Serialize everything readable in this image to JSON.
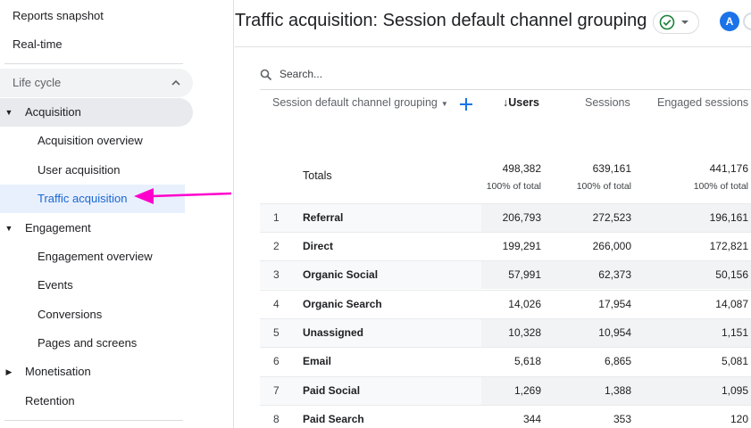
{
  "sidebar": {
    "top_items": [
      "Reports snapshot",
      "Real-time"
    ],
    "section_label": "Life cycle",
    "acquisition": "Acquisition",
    "acquisition_children": [
      "Acquisition overview",
      "User acquisition",
      "Traffic acquisition"
    ],
    "engagement": "Engagement",
    "engagement_children": [
      "Engagement overview",
      "Events",
      "Conversions",
      "Pages and screens"
    ],
    "monetisation": "Monetisation",
    "retention": "Retention",
    "active_item": "Traffic acquisition"
  },
  "header": {
    "title": "Traffic acquisition: Session default channel grouping",
    "avatar_letter": "A",
    "status_icon": "check-circle-icon"
  },
  "table": {
    "search_placeholder": "Search...",
    "columns": {
      "dimension": "Session default channel grouping",
      "users": "Users",
      "sessions": "Sessions",
      "engaged_sessions": "Engaged sessions"
    },
    "totals": {
      "label": "Totals",
      "users": "498,382",
      "sessions": "639,161",
      "engaged_sessions": "441,176",
      "users_pct": "100% of total",
      "sessions_pct": "100% of total",
      "engaged_pct": "100% of total"
    },
    "rows": [
      {
        "idx": "1",
        "name": "Referral",
        "users": "206,793",
        "sessions": "272,523",
        "engaged": "196,161"
      },
      {
        "idx": "2",
        "name": "Direct",
        "users": "199,291",
        "sessions": "266,000",
        "engaged": "172,821"
      },
      {
        "idx": "3",
        "name": "Organic Social",
        "users": "57,991",
        "sessions": "62,373",
        "engaged": "50,156"
      },
      {
        "idx": "4",
        "name": "Organic Search",
        "users": "14,026",
        "sessions": "17,954",
        "engaged": "14,087"
      },
      {
        "idx": "5",
        "name": "Unassigned",
        "users": "10,328",
        "sessions": "10,954",
        "engaged": "1,151"
      },
      {
        "idx": "6",
        "name": "Email",
        "users": "5,618",
        "sessions": "6,865",
        "engaged": "5,081"
      },
      {
        "idx": "7",
        "name": "Paid Social",
        "users": "1,269",
        "sessions": "1,388",
        "engaged": "1,095"
      },
      {
        "idx": "8",
        "name": "Paid Search",
        "users": "344",
        "sessions": "353",
        "engaged": "120"
      }
    ]
  },
  "colors": {
    "accent": "#1967d2",
    "arrow": "#ff00cc",
    "check": "#188038"
  }
}
